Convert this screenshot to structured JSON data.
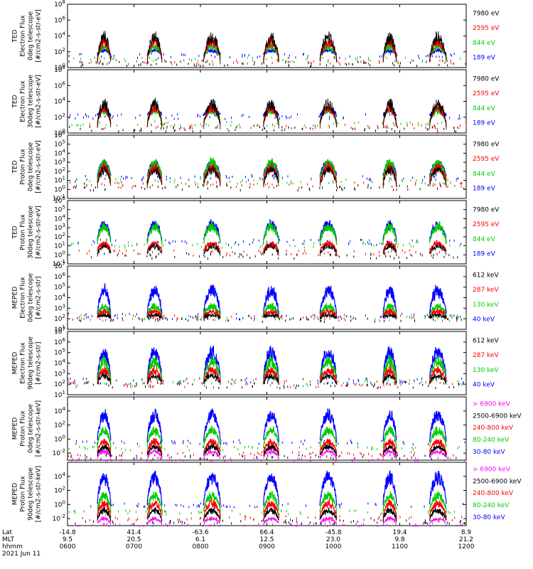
{
  "chart_data": {
    "type": "line",
    "date": "2021 Jun 11",
    "time_range": [
      "0600",
      "1200"
    ],
    "x_rows": [
      {
        "label": "Lat",
        "values": [
          "-14.8",
          "41.4",
          "-63.6",
          "66.4",
          "-45.8",
          "19.4",
          "8.9"
        ]
      },
      {
        "label": "MLT",
        "values": [
          "9.5",
          "20.5",
          "6.1",
          "12.5",
          "23.0",
          "9.8",
          "21.2"
        ]
      },
      {
        "label": "hhmm",
        "values": [
          "0600",
          "0700",
          "0800",
          "0900",
          "1000",
          "1100",
          "1200"
        ]
      }
    ],
    "passes_hours": [
      [
        0.45,
        0.65
      ],
      [
        1.2,
        1.42
      ],
      [
        2.05,
        2.3
      ],
      [
        2.95,
        3.18
      ],
      [
        3.8,
        4.05
      ],
      [
        4.75,
        4.95
      ],
      [
        5.45,
        5.7
      ]
    ],
    "panels": [
      {
        "ylabel_lines": [
          "TED",
          "Electron Flux",
          "0deg telescope",
          "[#/cm2-s-str-eV]"
        ],
        "ylog": [
          0,
          8
        ],
        "ticks": [
          {
            "base": "10",
            "exp": "0"
          },
          {
            "base": "10",
            "exp": "2"
          },
          {
            "base": "10",
            "exp": "4"
          },
          {
            "base": "10",
            "exp": "6"
          },
          {
            "base": "10",
            "exp": "8"
          }
        ],
        "legend": [
          {
            "label": "7980 eV",
            "color": "#000000"
          },
          {
            "label": "2595 eV",
            "color": "#ff0000"
          },
          {
            "label": "844 eV",
            "color": "#00cc00"
          },
          {
            "label": "189 eV",
            "color": "#0000ff"
          }
        ],
        "series_levels": {
          "peaks": [
            4.6,
            3.8,
            3.0,
            2.3
          ],
          "bg": [
            0.6,
            0.8,
            1.1,
            1.6
          ]
        }
      },
      {
        "ylabel_lines": [
          "TED",
          "Electron Flux",
          "30deg telescope",
          "[#/cm2-s-str-eV]"
        ],
        "ylog": [
          0,
          8
        ],
        "ticks": [
          {
            "base": "10",
            "exp": "0"
          },
          {
            "base": "10",
            "exp": "2"
          },
          {
            "base": "10",
            "exp": "4"
          },
          {
            "base": "10",
            "exp": "6"
          },
          {
            "base": "10",
            "exp": "8"
          }
        ],
        "legend": [
          {
            "label": "7980 eV",
            "color": "#000000"
          },
          {
            "label": "2595 eV",
            "color": "#ff0000"
          },
          {
            "label": "844 eV",
            "color": "#00cc00"
          },
          {
            "label": "189 eV",
            "color": "#0000ff"
          }
        ],
        "series_levels": {
          "peaks": [
            4.4,
            3.7,
            3.2,
            3.0
          ],
          "bg": [
            0.6,
            0.9,
            1.3,
            2.2
          ]
        }
      },
      {
        "ylabel_lines": [
          "TED",
          "Proton Flux",
          "0deg telescope",
          "[#/cm2-s-str-eV]"
        ],
        "ylog": [
          -1,
          6
        ],
        "ticks": [
          {
            "base": "10",
            "exp": "-1"
          },
          {
            "base": "10",
            "exp": "0"
          },
          {
            "base": "10",
            "exp": "1"
          },
          {
            "base": "10",
            "exp": "2"
          },
          {
            "base": "10",
            "exp": "3"
          },
          {
            "base": "10",
            "exp": "4"
          },
          {
            "base": "10",
            "exp": "5"
          },
          {
            "base": "10",
            "exp": "6"
          }
        ],
        "legend": [
          {
            "label": "7980 eV",
            "color": "#000000"
          },
          {
            "label": "2595 eV",
            "color": "#ff0000"
          },
          {
            "label": "844 eV",
            "color": "#00cc00"
          },
          {
            "label": "189 eV",
            "color": "#0000ff"
          }
        ],
        "series_levels": {
          "peaks": [
            2.6,
            2.9,
            3.4,
            3.2
          ],
          "bg": [
            0.3,
            0.6,
            1.0,
            1.4
          ]
        }
      },
      {
        "ylabel_lines": [
          "TED",
          "Proton Flux",
          "30deg telescope",
          "[#/cm2-s-str-eV]"
        ],
        "ylog": [
          -1,
          6
        ],
        "ticks": [
          {
            "base": "10",
            "exp": "-1"
          },
          {
            "base": "10",
            "exp": "0"
          },
          {
            "base": "10",
            "exp": "1"
          },
          {
            "base": "10",
            "exp": "2"
          },
          {
            "base": "10",
            "exp": "3"
          },
          {
            "base": "10",
            "exp": "4"
          },
          {
            "base": "10",
            "exp": "5"
          },
          {
            "base": "10",
            "exp": "6"
          }
        ],
        "legend": [
          {
            "label": "7980 eV",
            "color": "#000000"
          },
          {
            "label": "2595 eV",
            "color": "#ff0000"
          },
          {
            "label": "844 eV",
            "color": "#00cc00"
          },
          {
            "label": "189 eV",
            "color": "#0000ff"
          }
        ],
        "series_levels": {
          "peaks": [
            1.2,
            1.5,
            3.6,
            3.8
          ],
          "bg": [
            0.0,
            0.3,
            1.2,
            1.5
          ]
        }
      },
      {
        "ylabel_lines": [
          "MEPED",
          "Electron Flux",
          "0deg telescope",
          "[#/cm2-s-str]"
        ],
        "ylog": [
          1,
          7
        ],
        "ticks": [
          {
            "base": "10",
            "exp": "1"
          },
          {
            "base": "10",
            "exp": "2"
          },
          {
            "base": "10",
            "exp": "3"
          },
          {
            "base": "10",
            "exp": "4"
          },
          {
            "base": "10",
            "exp": "5"
          },
          {
            "base": "10",
            "exp": "6"
          },
          {
            "base": "10",
            "exp": "7"
          }
        ],
        "legend": [
          {
            "label": "612 keV",
            "color": "#000000"
          },
          {
            "label": "287 keV",
            "color": "#ff0000"
          },
          {
            "label": "130 keV",
            "color": "#00cc00"
          },
          {
            "label": "40 keV",
            "color": "#0000ff"
          }
        ],
        "series_levels": {
          "peaks": [
            2.4,
            2.8,
            3.4,
            5.2
          ],
          "bg": [
            2.1,
            2.2,
            2.2,
            2.3
          ]
        }
      },
      {
        "ylabel_lines": [
          "MEPED",
          "Electron Flux",
          "90deg telescope",
          "[#/cm2-s-str]"
        ],
        "ylog": [
          1,
          7
        ],
        "ticks": [
          {
            "base": "10",
            "exp": "1"
          },
          {
            "base": "10",
            "exp": "2"
          },
          {
            "base": "10",
            "exp": "3"
          },
          {
            "base": "10",
            "exp": "4"
          },
          {
            "base": "10",
            "exp": "5"
          },
          {
            "base": "10",
            "exp": "6"
          },
          {
            "base": "10",
            "exp": "7"
          }
        ],
        "legend": [
          {
            "label": "612 keV",
            "color": "#000000"
          },
          {
            "label": "287 keV",
            "color": "#ff0000"
          },
          {
            "label": "130 keV",
            "color": "#00cc00"
          },
          {
            "label": "40 keV",
            "color": "#0000ff"
          }
        ],
        "series_levels": {
          "peaks": [
            3.0,
            3.6,
            4.6,
            5.6
          ],
          "bg": [
            2.0,
            2.1,
            2.2,
            2.4
          ]
        }
      },
      {
        "ylabel_lines": [
          "MEPED",
          "Proton Flux",
          "0deg telescope",
          "[#/cm2-s-str-keV]"
        ],
        "ylog": [
          -3,
          6
        ],
        "ticks": [
          {
            "base": "10",
            "exp": "-2"
          },
          {
            "base": "10",
            "exp": "0"
          },
          {
            "base": "10",
            "exp": "2"
          },
          {
            "base": "10",
            "exp": "4"
          }
        ],
        "legend": [
          {
            "label": "> 6900 keV",
            "color": "#ff00ff"
          },
          {
            "label": "2500-6900 keV",
            "color": "#000000"
          },
          {
            "label": "240-800 keV",
            "color": "#ff0000"
          },
          {
            "label": "80-240 keV",
            "color": "#00cc00"
          },
          {
            "label": "30-80 keV",
            "color": "#0000ff"
          }
        ],
        "series_levels": {
          "peaks": [
            -1.5,
            -0.8,
            0.0,
            1.8,
            4.3
          ],
          "bg": [
            -2.8,
            -2.4,
            -2.0,
            -1.2,
            -0.3
          ]
        }
      },
      {
        "ylabel_lines": [
          "MEPED",
          "Proton Flux",
          "90deg telescope",
          "[#/cm2-s-str-keV]"
        ],
        "ylog": [
          -3,
          6
        ],
        "ticks": [
          {
            "base": "10",
            "exp": "-2"
          },
          {
            "base": "10",
            "exp": "0"
          },
          {
            "base": "10",
            "exp": "2"
          },
          {
            "base": "10",
            "exp": "4"
          }
        ],
        "legend": [
          {
            "label": "> 6900 keV",
            "color": "#ff00ff"
          },
          {
            "label": "2500-6900 keV",
            "color": "#000000"
          },
          {
            "label": "240-800 keV",
            "color": "#ff0000"
          },
          {
            "label": "80-240 keV",
            "color": "#00cc00"
          },
          {
            "label": "30-80 keV",
            "color": "#0000ff"
          }
        ],
        "series_levels": {
          "peaks": [
            -1.8,
            -0.5,
            0.6,
            1.8,
            4.8
          ],
          "bg": [
            -2.8,
            -2.3,
            -1.8,
            -1.0,
            0.0
          ]
        }
      }
    ]
  }
}
